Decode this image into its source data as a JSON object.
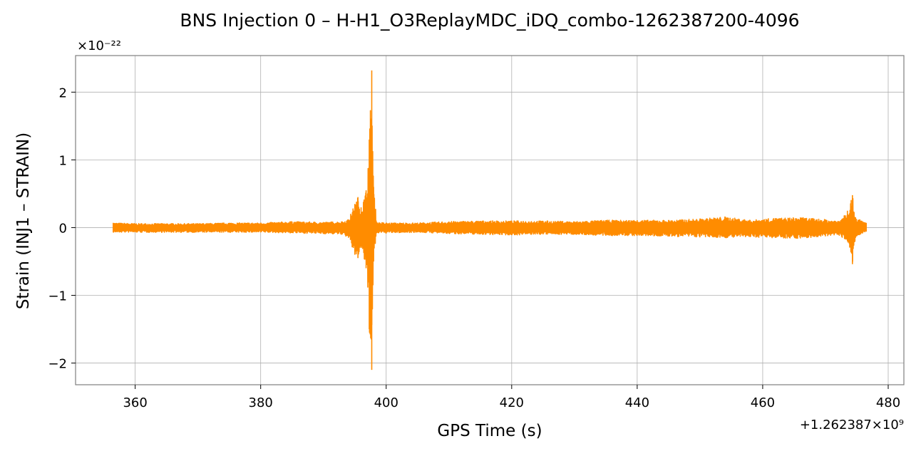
{
  "chart_data": {
    "type": "line",
    "title": "BNS Injection 0 – H-H1_O3ReplayMDC_iDQ_combo-1262387200-4096",
    "xlabel": "GPS Time (s)",
    "ylabel": "Strain (INJ1 – STRAIN)",
    "x_offset_label": "+1.262387×10⁹",
    "y_scale_label": "×10⁻²²",
    "xlim": [
      350.5,
      482.5
    ],
    "ylim": [
      -2.32,
      2.54
    ],
    "x_ticks": [
      360,
      380,
      400,
      420,
      440,
      460,
      480
    ],
    "x_tick_labels": [
      "360",
      "380",
      "400",
      "420",
      "440",
      "460",
      "480"
    ],
    "y_ticks": [
      -2,
      -1,
      0,
      1,
      2
    ],
    "y_tick_labels": [
      "−2",
      "−1",
      "0",
      "1",
      "2"
    ],
    "grid": true,
    "series": [
      {
        "color": "#ff8c00",
        "x_start": 356.5,
        "x_end": 476.5,
        "envelope": [
          [
            356.5,
            0.07,
            -0.07
          ],
          [
            360,
            0.06,
            -0.07
          ],
          [
            365,
            0.06,
            -0.07
          ],
          [
            370,
            0.06,
            -0.07
          ],
          [
            375,
            0.07,
            -0.07
          ],
          [
            380,
            0.07,
            -0.07
          ],
          [
            385,
            0.09,
            -0.08
          ],
          [
            390,
            0.08,
            -0.09
          ],
          [
            393,
            0.09,
            -0.1
          ],
          [
            394,
            0.12,
            -0.15
          ],
          [
            395,
            0.35,
            -0.4
          ],
          [
            395.5,
            0.45,
            -0.45
          ],
          [
            396,
            0.3,
            -0.3
          ],
          [
            396.8,
            0.55,
            -0.6
          ],
          [
            397.3,
            1.3,
            -1.5
          ],
          [
            397.7,
            2.32,
            -2.1
          ],
          [
            398,
            0.6,
            -0.5
          ],
          [
            398.5,
            0.08,
            -0.08
          ],
          [
            400,
            0.07,
            -0.08
          ],
          [
            405,
            0.07,
            -0.07
          ],
          [
            410,
            0.09,
            -0.09
          ],
          [
            415,
            0.1,
            -0.1
          ],
          [
            420,
            0.1,
            -0.11
          ],
          [
            425,
            0.1,
            -0.1
          ],
          [
            430,
            0.09,
            -0.1
          ],
          [
            435,
            0.11,
            -0.12
          ],
          [
            440,
            0.11,
            -0.12
          ],
          [
            445,
            0.11,
            -0.13
          ],
          [
            450,
            0.13,
            -0.14
          ],
          [
            454,
            0.16,
            -0.15
          ],
          [
            458,
            0.11,
            -0.14
          ],
          [
            462,
            0.14,
            -0.15
          ],
          [
            466,
            0.15,
            -0.16
          ],
          [
            470,
            0.12,
            -0.13
          ],
          [
            472,
            0.1,
            -0.1
          ],
          [
            473.5,
            0.25,
            -0.2
          ],
          [
            474.3,
            0.48,
            -0.54
          ],
          [
            474.8,
            0.15,
            -0.15
          ],
          [
            476.5,
            0.07,
            -0.06
          ]
        ]
      }
    ]
  }
}
